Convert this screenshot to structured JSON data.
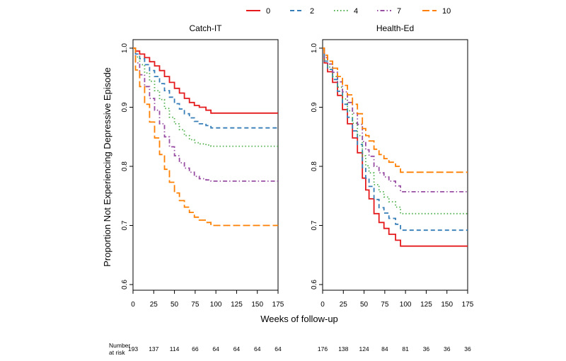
{
  "chart_data": {
    "type": "line",
    "subtype": "step-survival",
    "legend": {
      "placement": "top-center",
      "entries": [
        {
          "label": "0",
          "color": "#e41a1c",
          "dash": "solid"
        },
        {
          "label": "2",
          "color": "#377eb8",
          "dash": "dashed"
        },
        {
          "label": "4",
          "color": "#4daf4a",
          "dash": "dotted"
        },
        {
          "label": "7",
          "color": "#984ea3",
          "dash": "dotdash"
        },
        {
          "label": "10",
          "color": "#ff7f00",
          "dash": "longdash"
        }
      ]
    },
    "ylabel": "Proportion Not Experiencing Depressive Episode",
    "xlabel": "Weeks of follow-up",
    "ylim": [
      0.6,
      1.0
    ],
    "xlim": [
      0,
      175
    ],
    "yticks": [
      "0.6",
      "0.7",
      "0.8",
      "0.9",
      "1.0"
    ],
    "xticks": [
      "0",
      "25",
      "50",
      "75",
      "100",
      "125",
      "150",
      "175"
    ],
    "panels": [
      {
        "title": "Catch-IT",
        "risk_numbers": [
          "193",
          "137",
          "114",
          "66",
          "64",
          "64",
          "64",
          "64"
        ],
        "series": [
          {
            "name": "0",
            "points": [
              [
                0,
                1.0
              ],
              [
                3,
                0.995
              ],
              [
                8,
                0.99
              ],
              [
                14,
                0.984
              ],
              [
                20,
                0.977
              ],
              [
                26,
                0.97
              ],
              [
                32,
                0.962
              ],
              [
                38,
                0.952
              ],
              [
                44,
                0.942
              ],
              [
                50,
                0.932
              ],
              [
                56,
                0.924
              ],
              [
                62,
                0.915
              ],
              [
                68,
                0.908
              ],
              [
                74,
                0.903
              ],
              [
                80,
                0.9
              ],
              [
                88,
                0.895
              ],
              [
                94,
                0.89
              ],
              [
                175,
                0.89
              ]
            ]
          },
          {
            "name": "2",
            "points": [
              [
                0,
                1.0
              ],
              [
                3,
                0.99
              ],
              [
                8,
                0.982
              ],
              [
                14,
                0.972
              ],
              [
                20,
                0.962
              ],
              [
                26,
                0.952
              ],
              [
                32,
                0.94
              ],
              [
                38,
                0.928
              ],
              [
                44,
                0.917
              ],
              [
                50,
                0.906
              ],
              [
                56,
                0.897
              ],
              [
                62,
                0.889
              ],
              [
                68,
                0.882
              ],
              [
                74,
                0.876
              ],
              [
                80,
                0.872
              ],
              [
                88,
                0.869
              ],
              [
                94,
                0.865
              ],
              [
                175,
                0.865
              ]
            ]
          },
          {
            "name": "4",
            "points": [
              [
                0,
                1.0
              ],
              [
                3,
                0.985
              ],
              [
                8,
                0.972
              ],
              [
                14,
                0.958
              ],
              [
                20,
                0.944
              ],
              [
                26,
                0.928
              ],
              [
                32,
                0.913
              ],
              [
                38,
                0.898
              ],
              [
                44,
                0.883
              ],
              [
                50,
                0.872
              ],
              [
                56,
                0.862
              ],
              [
                62,
                0.852
              ],
              [
                68,
                0.845
              ],
              [
                74,
                0.84
              ],
              [
                80,
                0.838
              ],
              [
                88,
                0.836
              ],
              [
                94,
                0.834
              ],
              [
                175,
                0.834
              ]
            ]
          },
          {
            "name": "7",
            "points": [
              [
                0,
                1.0
              ],
              [
                3,
                0.975
              ],
              [
                8,
                0.955
              ],
              [
                14,
                0.935
              ],
              [
                20,
                0.915
              ],
              [
                26,
                0.895
              ],
              [
                32,
                0.872
              ],
              [
                38,
                0.85
              ],
              [
                44,
                0.833
              ],
              [
                50,
                0.818
              ],
              [
                56,
                0.806
              ],
              [
                62,
                0.797
              ],
              [
                68,
                0.79
              ],
              [
                74,
                0.783
              ],
              [
                80,
                0.779
              ],
              [
                88,
                0.777
              ],
              [
                94,
                0.775
              ],
              [
                175,
                0.775
              ]
            ]
          },
          {
            "name": "10",
            "points": [
              [
                0,
                1.0
              ],
              [
                3,
                0.963
              ],
              [
                8,
                0.935
              ],
              [
                14,
                0.905
              ],
              [
                20,
                0.875
              ],
              [
                26,
                0.848
              ],
              [
                32,
                0.82
              ],
              [
                38,
                0.795
              ],
              [
                44,
                0.773
              ],
              [
                50,
                0.755
              ],
              [
                56,
                0.742
              ],
              [
                62,
                0.731
              ],
              [
                68,
                0.722
              ],
              [
                74,
                0.714
              ],
              [
                80,
                0.709
              ],
              [
                88,
                0.705
              ],
              [
                94,
                0.7
              ],
              [
                175,
                0.7
              ]
            ]
          }
        ]
      },
      {
        "title": "Health-Ed",
        "risk_numbers": [
          "176",
          "138",
          "124",
          "84",
          "81",
          "36",
          "36",
          "36"
        ],
        "series": [
          {
            "name": "0",
            "points": [
              [
                0,
                1.0
              ],
              [
                2,
                0.975
              ],
              [
                6,
                0.96
              ],
              [
                12,
                0.942
              ],
              [
                18,
                0.92
              ],
              [
                24,
                0.896
              ],
              [
                30,
                0.872
              ],
              [
                36,
                0.848
              ],
              [
                42,
                0.823
              ],
              [
                48,
                0.78
              ],
              [
                52,
                0.76
              ],
              [
                56,
                0.745
              ],
              [
                62,
                0.72
              ],
              [
                68,
                0.705
              ],
              [
                74,
                0.695
              ],
              [
                80,
                0.685
              ],
              [
                88,
                0.675
              ],
              [
                94,
                0.665
              ],
              [
                175,
                0.665
              ]
            ]
          },
          {
            "name": "2",
            "points": [
              [
                0,
                1.0
              ],
              [
                2,
                0.978
              ],
              [
                6,
                0.964
              ],
              [
                12,
                0.947
              ],
              [
                18,
                0.927
              ],
              [
                24,
                0.905
              ],
              [
                30,
                0.883
              ],
              [
                36,
                0.86
              ],
              [
                42,
                0.837
              ],
              [
                48,
                0.798
              ],
              [
                52,
                0.78
              ],
              [
                56,
                0.766
              ],
              [
                62,
                0.744
              ],
              [
                68,
                0.73
              ],
              [
                74,
                0.721
              ],
              [
                80,
                0.712
              ],
              [
                88,
                0.702
              ],
              [
                94,
                0.692
              ],
              [
                175,
                0.692
              ]
            ]
          },
          {
            "name": "4",
            "points": [
              [
                0,
                1.0
              ],
              [
                2,
                0.981
              ],
              [
                6,
                0.968
              ],
              [
                12,
                0.952
              ],
              [
                18,
                0.934
              ],
              [
                24,
                0.914
              ],
              [
                30,
                0.894
              ],
              [
                36,
                0.873
              ],
              [
                42,
                0.852
              ],
              [
                48,
                0.818
              ],
              [
                52,
                0.801
              ],
              [
                56,
                0.789
              ],
              [
                62,
                0.769
              ],
              [
                68,
                0.757
              ],
              [
                74,
                0.748
              ],
              [
                80,
                0.74
              ],
              [
                88,
                0.731
              ],
              [
                94,
                0.72
              ],
              [
                175,
                0.72
              ]
            ]
          },
          {
            "name": "7",
            "points": [
              [
                0,
                1.0
              ],
              [
                2,
                0.984
              ],
              [
                6,
                0.973
              ],
              [
                12,
                0.959
              ],
              [
                18,
                0.943
              ],
              [
                24,
                0.926
              ],
              [
                30,
                0.908
              ],
              [
                36,
                0.89
              ],
              [
                42,
                0.871
              ],
              [
                48,
                0.842
              ],
              [
                52,
                0.828
              ],
              [
                56,
                0.817
              ],
              [
                62,
                0.8
              ],
              [
                68,
                0.789
              ],
              [
                74,
                0.782
              ],
              [
                80,
                0.775
              ],
              [
                88,
                0.767
              ],
              [
                94,
                0.757
              ],
              [
                175,
                0.757
              ]
            ]
          },
          {
            "name": "10",
            "points": [
              [
                0,
                1.0
              ],
              [
                2,
                0.988
              ],
              [
                6,
                0.978
              ],
              [
                12,
                0.966
              ],
              [
                18,
                0.952
              ],
              [
                24,
                0.937
              ],
              [
                30,
                0.921
              ],
              [
                36,
                0.905
              ],
              [
                42,
                0.889
              ],
              [
                48,
                0.864
              ],
              [
                52,
                0.852
              ],
              [
                56,
                0.843
              ],
              [
                62,
                0.829
              ],
              [
                68,
                0.82
              ],
              [
                74,
                0.813
              ],
              [
                80,
                0.807
              ],
              [
                88,
                0.8
              ],
              [
                94,
                0.79
              ],
              [
                175,
                0.79
              ]
            ]
          }
        ]
      }
    ],
    "risk_label": [
      "Number",
      "at risk"
    ]
  }
}
